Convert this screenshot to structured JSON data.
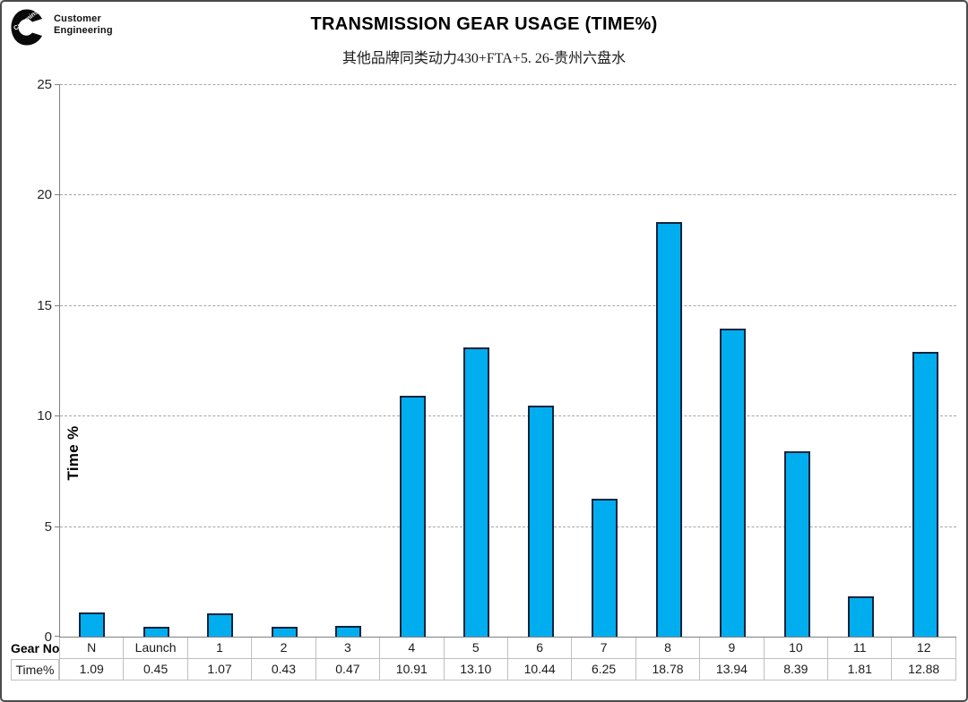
{
  "logo": {
    "brand_wordmark": "Cummins",
    "line1": "Customer",
    "line2": "Engineering"
  },
  "header": {
    "title": "TRANSMISSION GEAR USAGE (TIME%)",
    "subtitle": "其他品牌同类动力430+FTA+5. 26-贵州六盘水"
  },
  "chart_data": {
    "type": "bar",
    "title": "TRANSMISSION GEAR USAGE (TIME%)",
    "subtitle": "其他品牌同类动力430+FTA+5. 26-贵州六盘水",
    "categories": [
      "N",
      "Launch",
      "1",
      "2",
      "3",
      "4",
      "5",
      "6",
      "7",
      "8",
      "9",
      "10",
      "11",
      "12"
    ],
    "series": [
      {
        "name": "Time%",
        "values": [
          1.09,
          0.45,
          1.07,
          0.43,
          0.47,
          10.91,
          13.1,
          10.44,
          6.25,
          18.78,
          13.94,
          8.39,
          1.81,
          12.88
        ]
      }
    ],
    "xlabel": "Gear No.",
    "ylabel": "Time %",
    "ylim": [
      0,
      25
    ],
    "yticks": [
      0,
      5,
      10,
      15,
      20,
      25
    ],
    "grid": "horizontal-dashed",
    "legend_position": "none",
    "colors": {
      "bar_fill": "#00AEEF",
      "bar_border": "#12243E",
      "gridline": "#A6A6A6",
      "axis": "#808080",
      "table_border": "#BFBFBF"
    }
  },
  "data_table": {
    "row_headers": [
      "Gear No.",
      "Time%"
    ],
    "columns": [
      "N",
      "Launch",
      "1",
      "2",
      "3",
      "4",
      "5",
      "6",
      "7",
      "8",
      "9",
      "10",
      "11",
      "12"
    ],
    "values": [
      "1.09",
      "0.45",
      "1.07",
      "0.43",
      "0.47",
      "10.91",
      "13.10",
      "10.44",
      "6.25",
      "18.78",
      "13.94",
      "8.39",
      "1.81",
      "12.88"
    ]
  }
}
